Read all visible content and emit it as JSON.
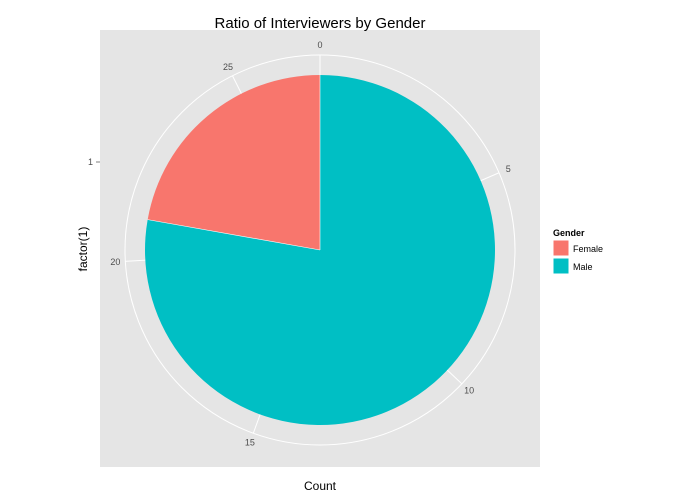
{
  "chart_data": {
    "type": "pie",
    "title": "Ratio of Interviewers by Gender",
    "xlabel": "Count",
    "ylabel": "factor(1)",
    "y_tick_label": "1",
    "theta_ticks": [
      0,
      5,
      10,
      15,
      20,
      25
    ],
    "theta_range": [
      0,
      27
    ],
    "legend": {
      "title": "Gender",
      "position": "right"
    },
    "categories": [
      "Female",
      "Male"
    ],
    "values": [
      6,
      21
    ],
    "colors": [
      "#F8766D",
      "#00BFC4"
    ],
    "panel_background": "#E5E5E5",
    "grid": true
  }
}
